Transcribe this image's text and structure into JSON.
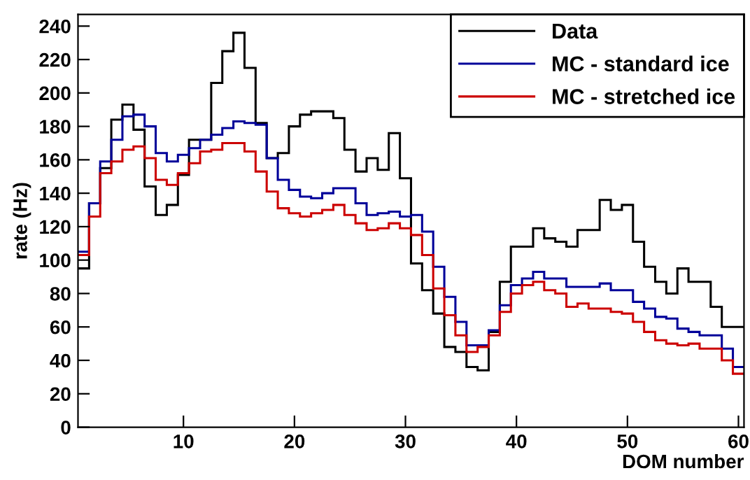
{
  "chart_data": {
    "type": "histogram",
    "xlabel": "DOM number",
    "ylabel": "rate (Hz)",
    "bins": [
      0.5,
      1.5,
      2.5,
      3.5,
      4.5,
      5.5,
      6.5,
      7.5,
      8.5,
      9.5,
      10.5,
      11.5,
      12.5,
      13.5,
      14.5,
      15.5,
      16.5,
      17.5,
      18.5,
      19.5,
      20.5,
      21.5,
      22.5,
      23.5,
      24.5,
      25.5,
      26.5,
      27.5,
      28.5,
      29.5,
      30.5,
      31.5,
      32.5,
      33.5,
      34.5,
      35.5,
      36.5,
      37.5,
      38.5,
      39.5,
      40.5,
      41.5,
      42.5,
      43.5,
      44.5,
      45.5,
      46.5,
      47.5,
      48.5,
      49.5,
      50.5,
      51.5,
      52.5,
      53.5,
      54.5,
      55.5,
      56.5,
      57.5,
      58.5,
      59.5,
      60.5
    ],
    "series": [
      {
        "name": "Data",
        "color": "#000000",
        "values": [
          95,
          134,
          155,
          184,
          193,
          178,
          144,
          127,
          133,
          151,
          172,
          172,
          206,
          225,
          236,
          215,
          182,
          161,
          164,
          180,
          187,
          189,
          189,
          185,
          166,
          153,
          161,
          154,
          176,
          149,
          98,
          82,
          68,
          48,
          45,
          36,
          34,
          57,
          87,
          108,
          108,
          119,
          113,
          111,
          108,
          118,
          118,
          136,
          130,
          133,
          111,
          96,
          87,
          80,
          95,
          87,
          87,
          72,
          60,
          60
        ]
      },
      {
        "name": "MC - standard ice",
        "color": "#000099",
        "values": [
          105,
          134,
          159,
          172,
          186,
          187,
          180,
          164,
          159,
          163,
          167,
          172,
          175,
          179,
          183,
          182,
          181,
          161,
          148,
          142,
          138,
          137,
          140,
          143,
          143,
          134,
          127,
          128,
          129,
          126,
          127,
          117,
          96,
          78,
          63,
          49,
          49,
          58,
          73,
          85,
          89,
          93,
          89,
          89,
          84,
          84,
          84,
          86,
          82,
          82,
          75,
          71,
          66,
          65,
          59,
          57,
          55,
          55,
          47,
          36
        ]
      },
      {
        "name": "MC - stretched ice",
        "color": "#cc0000",
        "values": [
          103,
          126,
          152,
          159,
          166,
          168,
          161,
          148,
          145,
          152,
          158,
          165,
          166,
          170,
          170,
          165,
          153,
          141,
          131,
          128,
          126,
          128,
          130,
          133,
          127,
          122,
          118,
          119,
          122,
          119,
          115,
          103,
          83,
          67,
          55,
          45,
          48,
          55,
          69,
          80,
          85,
          87,
          82,
          80,
          72,
          74,
          71,
          71,
          69,
          68,
          63,
          57,
          52,
          50,
          49,
          50,
          47,
          47,
          40,
          32
        ]
      }
    ],
    "xlim": [
      0.5,
      60.5
    ],
    "xticks": [
      10,
      20,
      30,
      40,
      50,
      60
    ],
    "ylim": [
      0,
      247
    ],
    "yticks": [
      0,
      20,
      40,
      60,
      80,
      100,
      120,
      140,
      160,
      180,
      200,
      220,
      240
    ],
    "legend": "top right",
    "grid": false
  }
}
